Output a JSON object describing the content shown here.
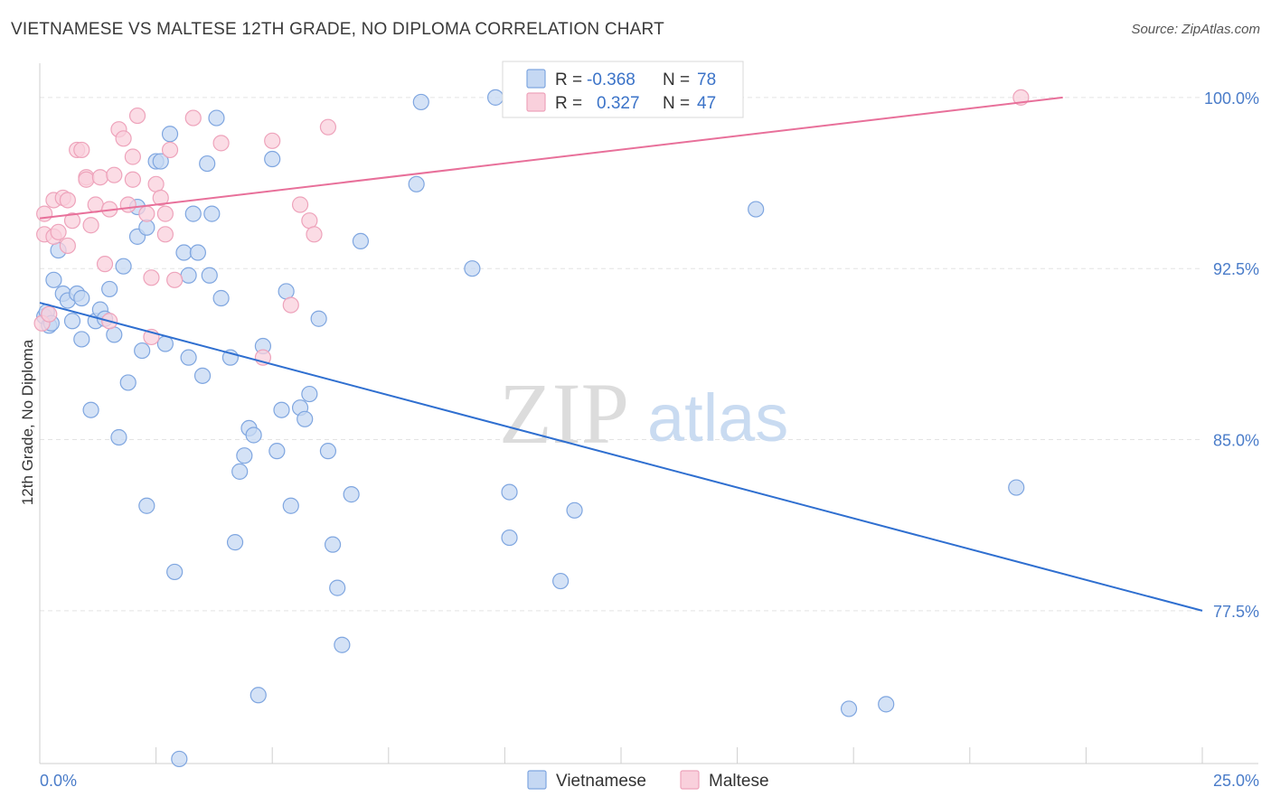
{
  "title": "VIETNAMESE VS MALTESE 12TH GRADE, NO DIPLOMA CORRELATION CHART",
  "source": "Source: ZipAtlas.com",
  "watermark": {
    "zip": "ZIP",
    "atlas": "atlas"
  },
  "colors": {
    "vietnamese_fill": "#c5d8f3",
    "vietnamese_stroke": "#7fa6e0",
    "vietnamese_line": "#2f6fd0",
    "maltese_fill": "#f9d0dc",
    "maltese_stroke": "#eea3bb",
    "maltese_line": "#e8709a",
    "tick_label": "#4a7cc9",
    "grid": "#e3e3e3"
  },
  "legend": {
    "rows": [
      {
        "r_label": "R =",
        "r_value": "-0.368",
        "n_label": "N =",
        "n_value": "78"
      },
      {
        "r_label": "R =",
        "r_value": "0.327",
        "n_label": "N =",
        "n_value": "47"
      }
    ]
  },
  "bottom_legend": [
    "Vietnamese",
    "Maltese"
  ],
  "chart_data": {
    "type": "scatter",
    "title": "VIETNAMESE VS MALTESE 12TH GRADE, NO DIPLOMA CORRELATION CHART",
    "xlabel": "",
    "ylabel": "12th Grade, No Diploma",
    "xlim": [
      0,
      25
    ],
    "ylim": [
      70.8,
      101.5
    ],
    "x_tick_labels": [
      "0.0%",
      "25.0%"
    ],
    "y_ticks": [
      77.5,
      85.0,
      92.5,
      100.0
    ],
    "y_tick_labels": [
      "77.5%",
      "85.0%",
      "92.5%",
      "100.0%"
    ],
    "grid": true,
    "legend_position": "top-center",
    "series": [
      {
        "name": "Vietnamese",
        "trend": {
          "x": [
            0,
            25
          ],
          "y": [
            91.0,
            77.5
          ]
        },
        "points": [
          [
            0.1,
            90.4
          ],
          [
            0.2,
            90.0
          ],
          [
            0.3,
            92.0
          ],
          [
            0.4,
            93.3
          ],
          [
            0.5,
            91.4
          ],
          [
            0.6,
            91.1
          ],
          [
            0.7,
            90.2
          ],
          [
            0.8,
            91.4
          ],
          [
            0.9,
            89.4
          ],
          [
            0.9,
            91.2
          ],
          [
            1.1,
            86.3
          ],
          [
            1.2,
            90.2
          ],
          [
            1.3,
            90.7
          ],
          [
            1.4,
            90.3
          ],
          [
            1.5,
            91.6
          ],
          [
            1.6,
            89.6
          ],
          [
            1.7,
            85.1
          ],
          [
            1.8,
            92.6
          ],
          [
            1.9,
            87.5
          ],
          [
            2.1,
            95.2
          ],
          [
            2.1,
            93.9
          ],
          [
            2.2,
            88.9
          ],
          [
            2.3,
            94.3
          ],
          [
            2.3,
            82.1
          ],
          [
            2.5,
            97.2
          ],
          [
            2.6,
            97.2
          ],
          [
            2.7,
            89.2
          ],
          [
            2.8,
            98.4
          ],
          [
            2.9,
            79.2
          ],
          [
            3.0,
            71.0
          ],
          [
            3.1,
            93.2
          ],
          [
            3.2,
            92.2
          ],
          [
            3.2,
            88.6
          ],
          [
            3.3,
            94.9
          ],
          [
            3.4,
            93.2
          ],
          [
            3.5,
            87.8
          ],
          [
            3.6,
            97.1
          ],
          [
            3.7,
            94.9
          ],
          [
            3.8,
            99.1
          ],
          [
            3.9,
            91.2
          ],
          [
            4.1,
            88.6
          ],
          [
            4.2,
            80.5
          ],
          [
            4.3,
            83.6
          ],
          [
            4.4,
            84.3
          ],
          [
            4.5,
            85.5
          ],
          [
            4.6,
            85.2
          ],
          [
            4.7,
            73.8
          ],
          [
            4.8,
            89.1
          ],
          [
            5.0,
            97.3
          ],
          [
            5.1,
            84.5
          ],
          [
            5.2,
            86.3
          ],
          [
            5.3,
            91.5
          ],
          [
            5.4,
            82.1
          ],
          [
            5.6,
            86.4
          ],
          [
            5.7,
            85.9
          ],
          [
            5.8,
            87.0
          ],
          [
            6.0,
            90.3
          ],
          [
            6.2,
            84.5
          ],
          [
            6.3,
            80.4
          ],
          [
            6.4,
            78.5
          ],
          [
            6.5,
            76.0
          ],
          [
            6.7,
            82.6
          ],
          [
            6.9,
            93.7
          ],
          [
            8.1,
            96.2
          ],
          [
            8.2,
            99.8
          ],
          [
            9.3,
            92.5
          ],
          [
            9.8,
            100.0
          ],
          [
            10.1,
            82.7
          ],
          [
            10.1,
            80.7
          ],
          [
            11.2,
            78.8
          ],
          [
            11.5,
            81.9
          ],
          [
            15.4,
            95.1
          ],
          [
            17.4,
            73.2
          ],
          [
            18.2,
            73.4
          ],
          [
            21.0,
            82.9
          ],
          [
            0.15,
            90.6
          ],
          [
            0.25,
            90.1
          ],
          [
            3.65,
            92.2
          ]
        ]
      },
      {
        "name": "Maltese",
        "trend": {
          "x": [
            0,
            22.0
          ],
          "y": [
            94.7,
            100.0
          ]
        },
        "points": [
          [
            0.1,
            94.9
          ],
          [
            0.1,
            94.0
          ],
          [
            0.3,
            93.9
          ],
          [
            0.3,
            95.5
          ],
          [
            0.4,
            94.1
          ],
          [
            0.5,
            95.6
          ],
          [
            0.6,
            93.5
          ],
          [
            0.6,
            95.5
          ],
          [
            0.7,
            94.6
          ],
          [
            0.8,
            97.7
          ],
          [
            0.9,
            97.7
          ],
          [
            1.0,
            96.5
          ],
          [
            1.0,
            96.4
          ],
          [
            1.1,
            94.4
          ],
          [
            1.2,
            95.3
          ],
          [
            1.3,
            96.5
          ],
          [
            1.4,
            92.7
          ],
          [
            1.5,
            95.1
          ],
          [
            1.5,
            90.2
          ],
          [
            1.6,
            96.6
          ],
          [
            1.7,
            98.6
          ],
          [
            1.8,
            98.2
          ],
          [
            1.9,
            95.3
          ],
          [
            2.0,
            97.4
          ],
          [
            2.0,
            96.4
          ],
          [
            2.1,
            99.2
          ],
          [
            2.3,
            94.9
          ],
          [
            2.4,
            92.1
          ],
          [
            2.4,
            89.5
          ],
          [
            2.5,
            96.2
          ],
          [
            2.6,
            95.6
          ],
          [
            2.7,
            94.9
          ],
          [
            2.7,
            94.0
          ],
          [
            2.8,
            97.7
          ],
          [
            2.9,
            92.0
          ],
          [
            3.3,
            99.1
          ],
          [
            3.9,
            98.0
          ],
          [
            4.8,
            88.6
          ],
          [
            5.0,
            98.1
          ],
          [
            5.4,
            90.9
          ],
          [
            5.6,
            95.3
          ],
          [
            5.8,
            94.6
          ],
          [
            5.9,
            94.0
          ],
          [
            6.2,
            98.7
          ],
          [
            21.1,
            100.0
          ],
          [
            0.05,
            90.1
          ],
          [
            0.2,
            90.5
          ]
        ]
      }
    ]
  }
}
